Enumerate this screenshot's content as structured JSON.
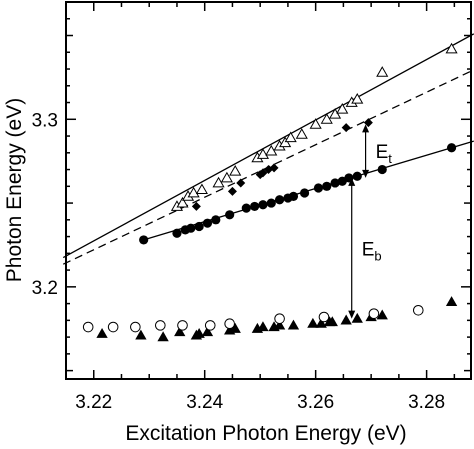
{
  "chart_data": {
    "type": "scatter",
    "title": "",
    "xlabel": "Excitation Photon Energy (eV)",
    "ylabel": "Photon Energy (eV)",
    "xlim": [
      3.215,
      3.288
    ],
    "ylim": [
      3.145,
      3.37
    ],
    "x_ticks": [
      3.22,
      3.24,
      3.26,
      3.28
    ],
    "y_ticks": [
      3.2,
      3.3
    ],
    "x_tick_labels": [
      "3.22",
      "3.24",
      "3.26",
      "3.28"
    ],
    "y_tick_labels": [
      "3.2",
      "3.3"
    ],
    "grid": false,
    "legend": "none",
    "series": [
      {
        "marker": "open-triangle",
        "points": [
          [
            3.235,
            3.248
          ],
          [
            3.236,
            3.25
          ],
          [
            3.237,
            3.254
          ],
          [
            3.238,
            3.256
          ],
          [
            3.2395,
            3.258
          ],
          [
            3.2425,
            3.262
          ],
          [
            3.244,
            3.265
          ],
          [
            3.2455,
            3.269
          ],
          [
            3.2495,
            3.277
          ],
          [
            3.2505,
            3.279
          ],
          [
            3.252,
            3.281
          ],
          [
            3.2535,
            3.284
          ],
          [
            3.2545,
            3.286
          ],
          [
            3.2555,
            3.289
          ],
          [
            3.2575,
            3.291
          ],
          [
            3.26,
            3.297
          ],
          [
            3.262,
            3.3
          ],
          [
            3.2635,
            3.303
          ],
          [
            3.2648,
            3.306
          ],
          [
            3.2665,
            3.31
          ],
          [
            3.2675,
            3.312
          ],
          [
            3.272,
            3.328
          ],
          [
            3.2845,
            3.342
          ]
        ]
      },
      {
        "marker": "filled-diamond",
        "points": [
          [
            3.2385,
            3.248
          ],
          [
            3.245,
            3.257
          ],
          [
            3.2465,
            3.262
          ],
          [
            3.25,
            3.267
          ],
          [
            3.2505,
            3.268
          ],
          [
            3.2515,
            3.27
          ],
          [
            3.2525,
            3.271
          ],
          [
            3.2655,
            3.295
          ],
          [
            3.2695,
            3.298
          ]
        ]
      },
      {
        "marker": "filled-circle",
        "points": [
          [
            3.229,
            3.228
          ],
          [
            3.235,
            3.232
          ],
          [
            3.2365,
            3.234
          ],
          [
            3.2375,
            3.235
          ],
          [
            3.239,
            3.236
          ],
          [
            3.2405,
            3.238
          ],
          [
            3.242,
            3.24
          ],
          [
            3.2445,
            3.243
          ],
          [
            3.2475,
            3.247
          ],
          [
            3.249,
            3.248
          ],
          [
            3.2505,
            3.249
          ],
          [
            3.252,
            3.25
          ],
          [
            3.2535,
            3.252
          ],
          [
            3.255,
            3.253
          ],
          [
            3.256,
            3.254
          ],
          [
            3.258,
            3.256
          ],
          [
            3.2605,
            3.259
          ],
          [
            3.262,
            3.26
          ],
          [
            3.2635,
            3.262
          ],
          [
            3.2648,
            3.263
          ],
          [
            3.266,
            3.265
          ],
          [
            3.2675,
            3.266
          ],
          [
            3.272,
            3.27
          ],
          [
            3.2845,
            3.283
          ]
        ]
      },
      {
        "marker": "filled-triangle",
        "points": [
          [
            3.2215,
            3.172
          ],
          [
            3.2285,
            3.171
          ],
          [
            3.2325,
            3.17
          ],
          [
            3.2355,
            3.173
          ],
          [
            3.2385,
            3.171
          ],
          [
            3.239,
            3.172
          ],
          [
            3.2405,
            3.173
          ],
          [
            3.2445,
            3.174
          ],
          [
            3.2455,
            3.175
          ],
          [
            3.2495,
            3.175
          ],
          [
            3.2505,
            3.176
          ],
          [
            3.2525,
            3.176
          ],
          [
            3.2535,
            3.177
          ],
          [
            3.256,
            3.177
          ],
          [
            3.2595,
            3.178
          ],
          [
            3.261,
            3.178
          ],
          [
            3.2625,
            3.179
          ],
          [
            3.263,
            3.179
          ],
          [
            3.2655,
            3.18
          ],
          [
            3.2675,
            3.181
          ],
          [
            3.27,
            3.182
          ],
          [
            3.272,
            3.183
          ],
          [
            3.2845,
            3.191
          ]
        ]
      },
      {
        "marker": "open-circle",
        "points": [
          [
            3.219,
            3.176
          ],
          [
            3.2235,
            3.176
          ],
          [
            3.2275,
            3.176
          ],
          [
            3.232,
            3.177
          ],
          [
            3.236,
            3.177
          ],
          [
            3.241,
            3.177
          ],
          [
            3.2445,
            3.178
          ],
          [
            3.2535,
            3.181
          ],
          [
            3.2615,
            3.182
          ],
          [
            3.2705,
            3.184
          ],
          [
            3.2785,
            3.186
          ]
        ]
      }
    ],
    "fit_lines": [
      {
        "style": "solid",
        "from": [
          3.2145,
          3.2175
        ],
        "to": [
          3.2885,
          3.351
        ]
      },
      {
        "style": "dashed",
        "from": [
          3.2145,
          3.2135
        ],
        "to": [
          3.2885,
          3.3295
        ]
      },
      {
        "style": "solid",
        "from": [
          3.229,
          3.228
        ],
        "to": [
          3.2885,
          3.287
        ]
      }
    ],
    "annotations": [
      {
        "label": "E",
        "subscript": "t",
        "arrow_x": 3.269,
        "arrow_from": 3.265,
        "arrow_to": 3.297
      },
      {
        "label": "E",
        "subscript": "b",
        "arrow_x": 3.2665,
        "arrow_from": 3.181,
        "arrow_to": 3.265
      }
    ]
  }
}
